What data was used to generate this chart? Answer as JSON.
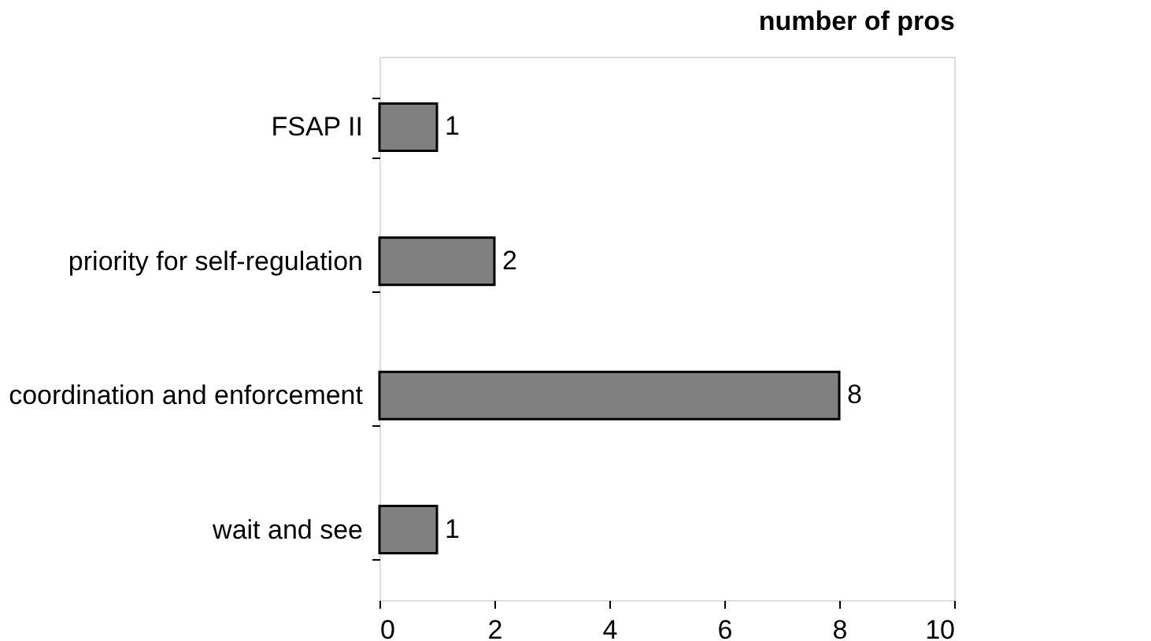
{
  "chart_data": {
    "type": "bar",
    "orientation": "horizontal",
    "title": "number of pros",
    "categories": [
      "FSAP II",
      "priority for self-regulation",
      "coordination and enforcement",
      "wait and see"
    ],
    "values": [
      1,
      2,
      8,
      1
    ],
    "color": "#808080",
    "xlim": [
      0,
      10
    ],
    "xticks": [
      0,
      2,
      4,
      6,
      8,
      10
    ],
    "grid": false,
    "data_labels": true
  }
}
